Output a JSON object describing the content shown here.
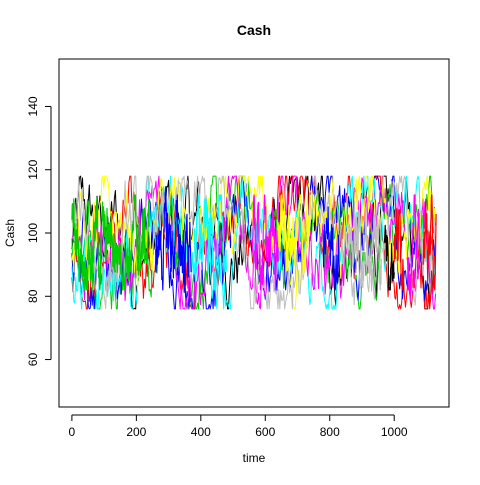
{
  "chart_data": {
    "type": "line",
    "title": "Cash",
    "xlabel": "time",
    "ylabel": "Cash",
    "xlim": [
      -40,
      1170
    ],
    "ylim": [
      45,
      155
    ],
    "x_ticks": [
      0,
      200,
      400,
      600,
      800,
      1000
    ],
    "y_ticks": [
      60,
      80,
      100,
      120,
      140
    ],
    "grid": false,
    "legend": "none",
    "n_points": 1130,
    "center": 97,
    "typical_range": [
      82,
      112
    ],
    "observed_min": 76,
    "observed_max": 118,
    "series_colors": [
      "#000000",
      "#ff0000",
      "#00cd00",
      "#0000ff",
      "#00ffff",
      "#ff00ff",
      "#ffff00",
      "#bebebe"
    ],
    "dominant_segments": [
      {
        "from": 0,
        "to": 100,
        "color": "#00cd00"
      },
      {
        "from": 100,
        "to": 240,
        "color": "#00cd00"
      },
      {
        "from": 260,
        "to": 370,
        "color": "#0000ff"
      },
      {
        "from": 380,
        "to": 480,
        "color": "#00ffff"
      },
      {
        "from": 560,
        "to": 640,
        "color": "#ff00ff"
      },
      {
        "from": 640,
        "to": 740,
        "color": "#ffff00"
      },
      {
        "from": 780,
        "to": 830,
        "color": "#0000ff"
      },
      {
        "from": 860,
        "to": 960,
        "color": "#bebebe"
      },
      {
        "from": 970,
        "to": 1000,
        "color": "#000000"
      },
      {
        "from": 1000,
        "to": 1030,
        "color": "#ff0000"
      },
      {
        "from": 1040,
        "to": 1080,
        "color": "#ff00ff"
      },
      {
        "from": 1090,
        "to": 1130,
        "color": "#ff0000"
      }
    ]
  }
}
